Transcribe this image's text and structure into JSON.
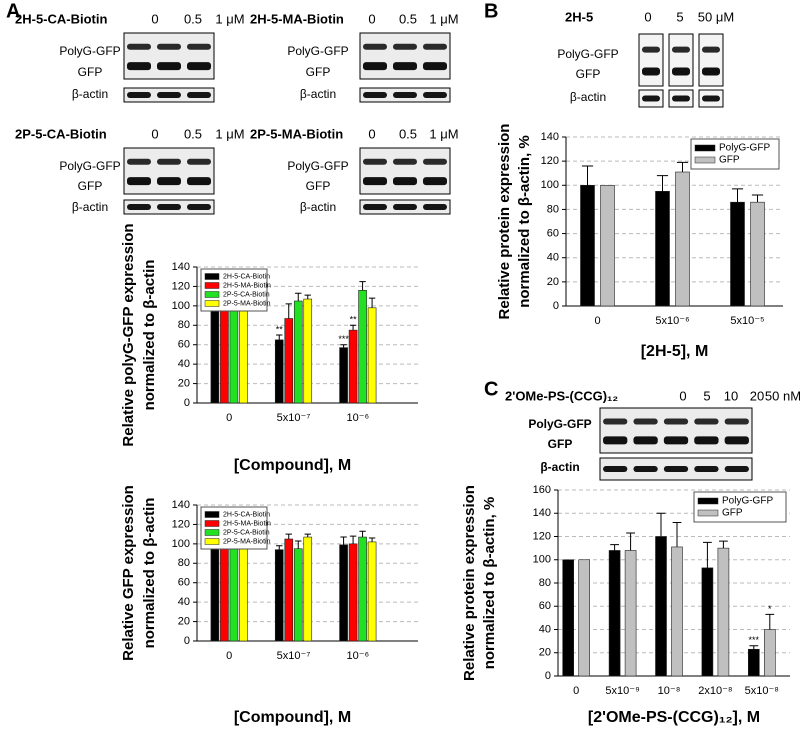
{
  "panels": [
    "A",
    "B",
    "C"
  ],
  "blots": [
    {
      "title": "2H-5-CA-Biotin",
      "lanes": [
        "0",
        "0.5",
        "1 μM"
      ],
      "rows": [
        "PolyG-GFP",
        "GFP",
        "β-actin"
      ]
    },
    {
      "title": "2H-5-MA-Biotin",
      "lanes": [
        "0",
        "0.5",
        "1 μM"
      ],
      "rows": [
        "PolyG-GFP",
        "GFP",
        "β-actin"
      ]
    },
    {
      "title": "2P-5-CA-Biotin",
      "lanes": [
        "0",
        "0.5",
        "1 μM"
      ],
      "rows": [
        "PolyG-GFP",
        "GFP",
        "β-actin"
      ]
    },
    {
      "title": "2P-5-MA-Biotin",
      "lanes": [
        "0",
        "0.5",
        "1 μM"
      ],
      "rows": [
        "PolyG-GFP",
        "GFP",
        "β-actin"
      ]
    },
    {
      "title": "2H-5",
      "lanes": [
        "0",
        "5",
        "50 μM"
      ],
      "rows": [
        "PolyG-GFP",
        "GFP",
        "β-actin"
      ]
    },
    {
      "title": "2'OMe-PS-(CCG)₁₂",
      "lanes": [
        "0",
        "5",
        "10",
        "20",
        "50 nM"
      ],
      "rows": [
        "PolyG-GFP",
        "GFP",
        "β-actin"
      ]
    }
  ],
  "chart_data": [
    {
      "type": "bar",
      "ylabel": [
        "Relative polyG-GFP expression",
        "normalized to β-actin"
      ],
      "xlabel": "[Compound], M",
      "categories": [
        "0",
        "5x10⁻⁷",
        "10⁻⁶"
      ],
      "series": [
        {
          "name": "2H-5-CA-Biotin",
          "color": "#000000",
          "values": [
            100,
            65,
            57
          ],
          "errors": [
            null,
            5,
            3
          ],
          "significance": [
            null,
            "**",
            "***"
          ]
        },
        {
          "name": "2H-5-MA-Biotin",
          "color": "#ff0000",
          "values": [
            100,
            87,
            75
          ],
          "errors": [
            null,
            15,
            5
          ],
          "significance": [
            null,
            null,
            "**"
          ]
        },
        {
          "name": "2P-5-CA-Biotin",
          "color": "#22e022",
          "values": [
            100,
            105,
            116
          ],
          "errors": [
            null,
            8,
            9
          ]
        },
        {
          "name": "2P-5-MA-Biotin",
          "color": "#ffff00",
          "values": [
            100,
            107,
            98
          ],
          "errors": [
            null,
            4,
            10
          ]
        }
      ],
      "ylim": [
        0,
        140
      ],
      "yticks": [
        0,
        20,
        40,
        60,
        80,
        100,
        120,
        140
      ],
      "grid": true,
      "legend": "upper left"
    },
    {
      "type": "bar",
      "ylabel": [
        "Relative GFP expression",
        "normalized to β-actin"
      ],
      "xlabel": "[Compound], M",
      "categories": [
        "0",
        "5x10⁻⁷",
        "10⁻⁶"
      ],
      "series": [
        {
          "name": "2H-5-CA-Biotin",
          "color": "#000000",
          "values": [
            100,
            94,
            99
          ],
          "errors": [
            null,
            4,
            8
          ]
        },
        {
          "name": "2H-5-MA-Biotin",
          "color": "#ff0000",
          "values": [
            100,
            105,
            100
          ],
          "errors": [
            null,
            5,
            8
          ]
        },
        {
          "name": "2P-5-CA-Biotin",
          "color": "#22e022",
          "values": [
            100,
            95,
            107
          ],
          "errors": [
            null,
            8,
            6
          ]
        },
        {
          "name": "2P-5-MA-Biotin",
          "color": "#ffff00",
          "values": [
            100,
            107,
            102
          ],
          "errors": [
            null,
            3,
            4
          ]
        }
      ],
      "ylim": [
        0,
        140
      ],
      "yticks": [
        0,
        20,
        40,
        60,
        80,
        100,
        120,
        140
      ],
      "grid": true,
      "legend": "upper left"
    },
    {
      "type": "bar",
      "ylabel": [
        "Relative protein expression",
        "normalized to β-actin, %"
      ],
      "xlabel": "[2H-5], M",
      "categories": [
        "0",
        "5x10⁻⁶",
        "5x10⁻⁵"
      ],
      "series": [
        {
          "name": "PolyG-GFP",
          "color": "#000000",
          "values": [
            100,
            95,
            86
          ],
          "errors": [
            16,
            13,
            11
          ]
        },
        {
          "name": "GFP",
          "color": "#c0c0c0",
          "values": [
            100,
            111,
            86
          ],
          "errors": [
            null,
            8,
            6
          ]
        }
      ],
      "ylim": [
        0,
        140
      ],
      "yticks": [
        0,
        20,
        40,
        60,
        80,
        100,
        120,
        140
      ],
      "grid": true,
      "legend": "upper right"
    },
    {
      "type": "bar",
      "ylabel": [
        "Relative protein expression",
        "normalized to β-actin, %"
      ],
      "xlabel": "[2'OMe-PS-(CCG)₁₂], M",
      "categories": [
        "0",
        "5x10⁻⁹",
        "10⁻⁸",
        "2x10⁻⁸",
        "5x10⁻⁸"
      ],
      "series": [
        {
          "name": "PolyG-GFP",
          "color": "#000000",
          "values": [
            100,
            108,
            120,
            93,
            23
          ],
          "errors": [
            null,
            5,
            20,
            22,
            3
          ],
          "significance": [
            null,
            null,
            null,
            null,
            "***"
          ]
        },
        {
          "name": "GFP",
          "color": "#c0c0c0",
          "values": [
            100,
            108,
            111,
            110,
            40
          ],
          "errors": [
            null,
            15,
            21,
            6,
            13
          ],
          "significance": [
            null,
            null,
            null,
            null,
            "*"
          ]
        }
      ],
      "ylim": [
        0,
        160
      ],
      "yticks": [
        0,
        20,
        40,
        60,
        80,
        100,
        120,
        140,
        160
      ],
      "grid": true,
      "legend": "upper right"
    }
  ]
}
